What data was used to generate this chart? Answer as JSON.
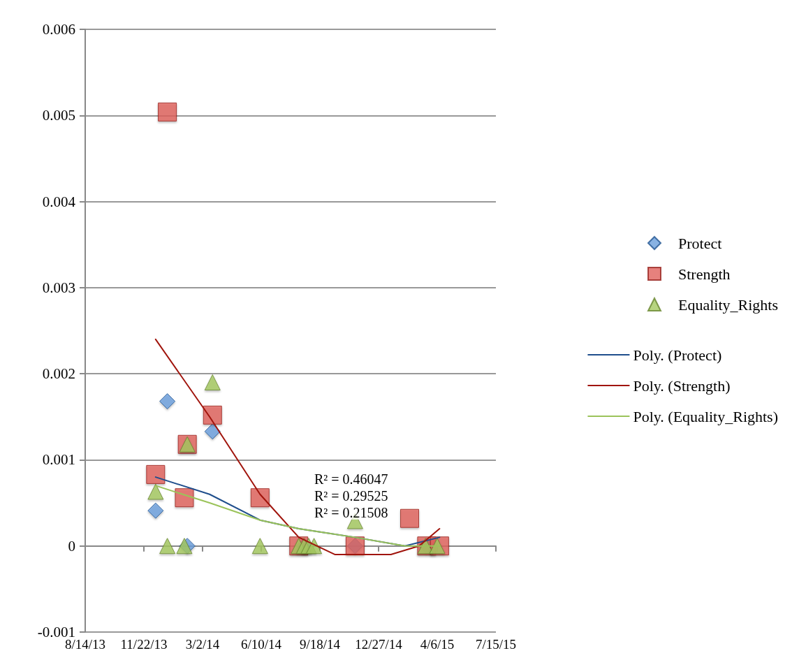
{
  "chart_data": {
    "type": "scatter",
    "xlim": [
      "2013-08-14",
      "2015-07-15"
    ],
    "xticks": [
      {
        "value": "2013-08-14",
        "label": "8/14/13"
      },
      {
        "value": "2013-11-22",
        "label": "11/22/13"
      },
      {
        "value": "2014-03-02",
        "label": "3/2/14"
      },
      {
        "value": "2014-06-10",
        "label": "6/10/14"
      },
      {
        "value": "2014-09-18",
        "label": "9/18/14"
      },
      {
        "value": "2014-12-27",
        "label": "12/27/14"
      },
      {
        "value": "2015-04-06",
        "label": "4/6/15"
      },
      {
        "value": "2015-07-15",
        "label": "7/15/15"
      }
    ],
    "ylim": [
      -0.001,
      0.006
    ],
    "yticks": [
      -0.001,
      0,
      0.001,
      0.002,
      0.003,
      0.004,
      0.005,
      0.006
    ],
    "grid": "y",
    "legend": "right",
    "annotations": [
      "R² = 0.46047",
      "R² = 0.29525",
      "R² = 0.21508"
    ],
    "series": [
      {
        "name": "Protect",
        "type": "scatter",
        "marker": "diamond",
        "color": "#6a9fdc",
        "x": [
          "2013-12-12",
          "2014-01-01",
          "2014-02-04",
          "2014-03-19",
          "2014-08-22",
          "2014-11-17",
          "2015-03-19"
        ],
        "values": [
          0.00041,
          0.00168,
          0,
          0.00133,
          0,
          0,
          0
        ]
      },
      {
        "name": "Strength",
        "type": "scatter",
        "marker": "square",
        "color": "#e0625c",
        "x": [
          "2013-12-12",
          "2014-01-01",
          "2014-01-30",
          "2014-02-04",
          "2014-03-19",
          "2014-06-08",
          "2014-08-13",
          "2014-11-17",
          "2015-02-18",
          "2015-03-19",
          "2015-04-10"
        ],
        "values": [
          0.00083,
          0.00504,
          0.00056,
          0.00118,
          0.00152,
          0.00056,
          0,
          0,
          0.00032,
          0,
          0
        ]
      },
      {
        "name": "Equality_Rights",
        "type": "scatter",
        "marker": "triangle",
        "color": "#a5c960",
        "x": [
          "2013-12-12",
          "2014-01-01",
          "2014-01-30",
          "2014-02-04",
          "2014-03-19",
          "2014-06-08",
          "2014-08-13",
          "2014-08-22",
          "2014-08-30",
          "2014-09-08",
          "2014-11-17",
          "2015-03-17",
          "2015-04-06"
        ],
        "values": [
          0.00063,
          0,
          0,
          0.00118,
          0.0019,
          0,
          0,
          0,
          0,
          0,
          0.00029,
          0,
          0
        ]
      },
      {
        "name": "Poly. (Protect)",
        "type": "line",
        "marker": "none",
        "line_style": "solid",
        "color": "#1f4e8c",
        "x": [
          "2013-12-12",
          "2014-03-14",
          "2014-06-08",
          "2014-08-13",
          "2014-11-17",
          "2015-02-10",
          "2015-04-10"
        ],
        "values": [
          0.0008,
          0.0006,
          0.0003,
          0.0002,
          0.0001,
          0,
          0.0001
        ]
      },
      {
        "name": "Poly. (Strength)",
        "type": "line",
        "marker": "none",
        "line_style": "solid",
        "color": "#a0140c",
        "x": [
          "2013-12-12",
          "2014-03-14",
          "2014-06-08",
          "2014-08-13",
          "2014-10-14",
          "2014-11-17",
          "2015-01-17",
          "2015-03-06",
          "2015-04-10"
        ],
        "values": [
          0.0024,
          0.0015,
          0.0006,
          0.0001,
          -0.0001,
          -0.0001,
          -0.0001,
          0,
          0.0002
        ]
      },
      {
        "name": "Poly. (Equality_Rights)",
        "type": "line",
        "marker": "none",
        "line_style": "solid",
        "color": "#9bc35a",
        "x": [
          "2013-12-12",
          "2014-03-14",
          "2014-06-08",
          "2014-08-13",
          "2014-11-17",
          "2015-02-10",
          "2015-04-10"
        ],
        "values": [
          0.0007,
          0.0005,
          0.0003,
          0.0002,
          0.0001,
          0,
          0
        ]
      }
    ]
  }
}
